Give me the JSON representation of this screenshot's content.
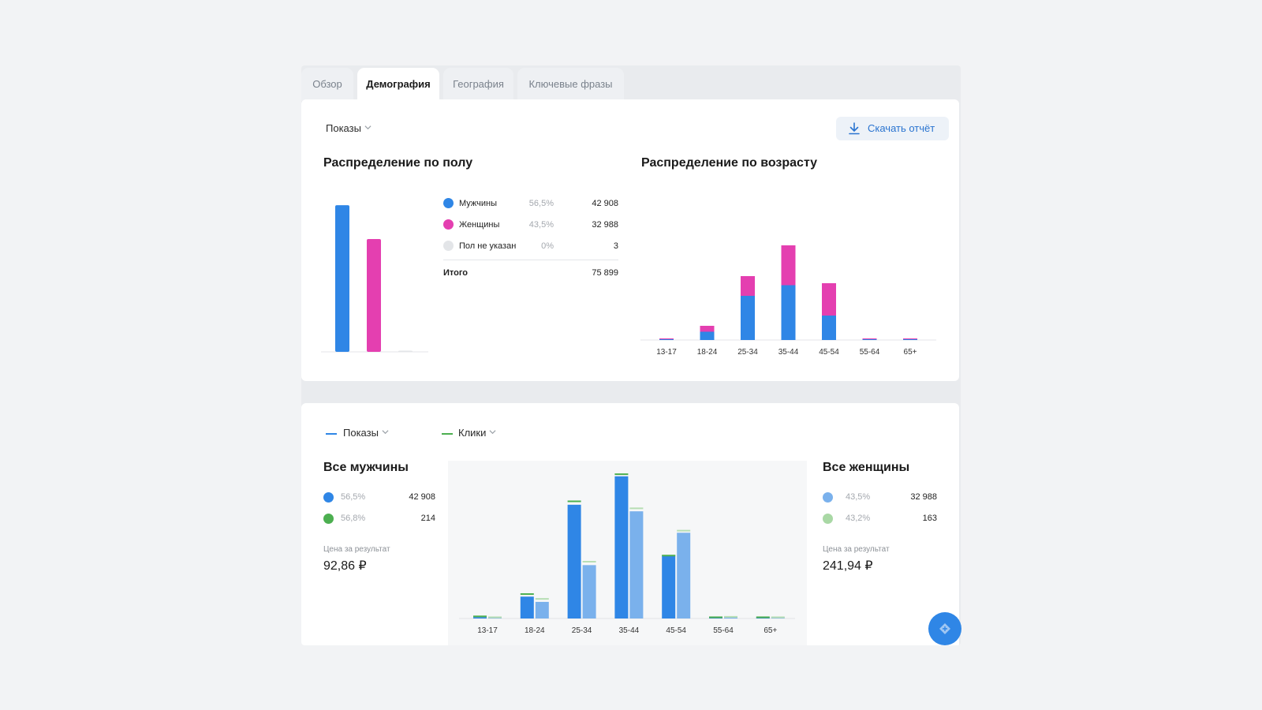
{
  "tabs": [
    {
      "label": "Обзор",
      "active": false
    },
    {
      "label": "Демография",
      "active": true
    },
    {
      "label": "География",
      "active": false
    },
    {
      "label": "Ключевые фразы",
      "active": false
    }
  ],
  "toolbar": {
    "metric_select": "Показы",
    "download_label": "Скачать отчёт",
    "download_icon": "download-icon"
  },
  "gender": {
    "title": "Распределение по полу",
    "rows": [
      {
        "label": "Мужчины",
        "percent": "56,5%",
        "value": "42 908",
        "color": "#2f86e6"
      },
      {
        "label": "Женщины",
        "percent": "43,5%",
        "value": "32 988",
        "color": "#e43fb0"
      },
      {
        "label": "Пол не указан",
        "percent": "0%",
        "value": "3",
        "color": "#e3e5e8"
      }
    ],
    "total_label": "Итого",
    "total_value": "75 899"
  },
  "age": {
    "title": "Распределение по возрасту"
  },
  "compare": {
    "select_impressions": "Показы",
    "select_clicks": "Клики",
    "impressions_color": "#2f86e6",
    "clicks_color": "#4caf50",
    "men": {
      "title": "Все мужчины",
      "impressions_percent": "56,5%",
      "impressions_value": "42 908",
      "clicks_percent": "56,8%",
      "clicks_value": "214",
      "price_label": "Цена за результат",
      "price": "92,86 ₽"
    },
    "women": {
      "title": "Все женщины",
      "impressions_percent": "43,5%",
      "impressions_value": "32 988",
      "clicks_percent": "43,2%",
      "clicks_value": "163",
      "price_label": "Цена за результат",
      "price": "241,94 ₽"
    }
  },
  "chart_data": [
    {
      "type": "bar",
      "categories": [
        "Мужчины",
        "Женщины",
        "Пол не указан"
      ],
      "values": [
        42908,
        32988,
        3
      ],
      "ylim": [
        0,
        45000
      ]
    },
    {
      "type": "bar",
      "stacked": true,
      "categories": [
        "13-17",
        "18-24",
        "25-34",
        "35-44",
        "45-54",
        "55-64",
        "65+"
      ],
      "series": [
        {
          "name": "Мужчины",
          "color": "#2f86e6",
          "values": [
            200,
            2100,
            11200,
            13900,
            6200,
            60,
            40
          ]
        },
        {
          "name": "Женщины",
          "color": "#e43fb0",
          "values": [
            100,
            1500,
            5000,
            10100,
            8200,
            160,
            120
          ]
        }
      ],
      "ylim": [
        0,
        33000
      ]
    },
    {
      "type": "bar",
      "categories": [
        "13-17",
        "18-24",
        "25-34",
        "35-44",
        "45-54",
        "55-64",
        "65+"
      ],
      "series": [
        {
          "name": "Все мужчины",
          "color": "#2f86e6",
          "values": [
            0.3,
            5.0,
            26.0,
            32.5,
            14.5,
            0.2,
            0.1
          ]
        },
        {
          "name": "Все женщины",
          "color": "#7ab1ec",
          "values": [
            0.3,
            3.8,
            12.2,
            24.5,
            19.6,
            0.4,
            0.3
          ]
        }
      ],
      "clicks": {
        "color": "#4caf50",
        "men": [
          0.3,
          5.4,
          26.6,
          32.8,
          14.2,
          0.1,
          0.1
        ],
        "women": [
          0.1,
          4.3,
          12.8,
          25.0,
          19.9,
          0.2,
          0.1
        ]
      },
      "ylim": [
        0,
        33
      ]
    }
  ],
  "fab_icon": "chat-icon"
}
